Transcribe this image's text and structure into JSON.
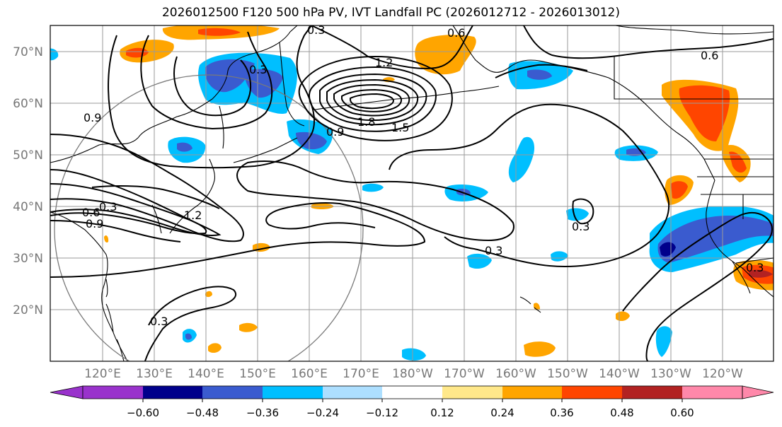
{
  "title": "2026012500 F120 500 hPa PV, IVT Landfall PC (2026012712 - 2026013012)",
  "latitude_labels": [
    "70°N",
    "60°N",
    "50°N",
    "40°N",
    "30°N",
    "20°N"
  ],
  "longitude_labels": [
    "120°E",
    "130°E",
    "140°E",
    "150°E",
    "160°E",
    "170°E",
    "180°W",
    "170°W",
    "160°W",
    "150°W",
    "140°W",
    "130°W",
    "120°W"
  ],
  "contour_labels": [
    "0.3",
    "0.6",
    "0.3",
    "1.2",
    "0.9",
    "1.8",
    "1.5",
    "0.9",
    "0.6",
    "0.3",
    "1.2",
    "0.3",
    "0.3",
    "0.6",
    "0.3",
    "0.9",
    "0.3"
  ],
  "colorbar": {
    "ticks": [
      "−0.60",
      "−0.48",
      "−0.36",
      "−0.24",
      "−0.12",
      "0.12",
      "0.24",
      "0.36",
      "0.48",
      "0.60"
    ],
    "colors": [
      "#9932CC",
      "#00008B",
      "#3A5BCF",
      "#00BFFF",
      "#ADDFFF",
      "#FFFFFF",
      "#FFE88A",
      "#FFA500",
      "#FF4500",
      "#B22222",
      "#FF88AA"
    ]
  },
  "colors": {
    "neg_dark": "#00008B",
    "neg_mid": "#3A5BCF",
    "neg_light": "#00BFFF",
    "pos_light": "#FFE88A",
    "pos_mid": "#FFA500",
    "pos_strong": "#FF4500",
    "pos_dark": "#B22222"
  }
}
